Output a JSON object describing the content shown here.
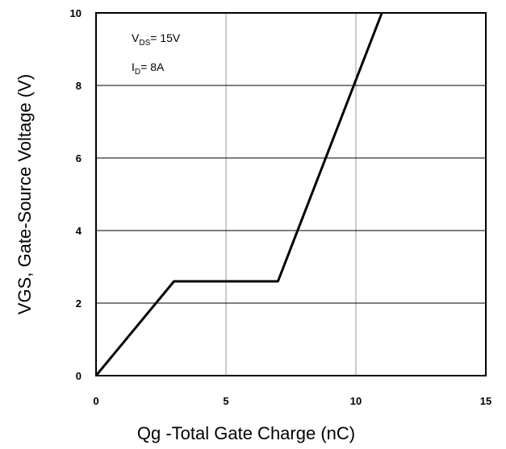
{
  "chart_data": {
    "type": "line",
    "xlabel": "Qg -Total Gate Charge (nC)",
    "ylabel": "VGS, Gate-Source Voltage (V)",
    "xlim": [
      0,
      15
    ],
    "ylim": [
      0,
      10
    ],
    "x_ticks": [
      "0",
      "5",
      "10",
      "15"
    ],
    "y_ticks": [
      "0",
      "2",
      "4",
      "6",
      "8",
      "10"
    ],
    "grid": true,
    "annotations": {
      "vds": {
        "main": "V",
        "sub": "DS",
        "rest": "= 15V"
      },
      "id": {
        "main": "I",
        "sub": "D",
        "rest": "= 8A"
      }
    },
    "series": [
      {
        "x": [
          0,
          3.0,
          7.0,
          11.0
        ],
        "y": [
          0,
          2.6,
          2.6,
          10
        ]
      }
    ]
  }
}
